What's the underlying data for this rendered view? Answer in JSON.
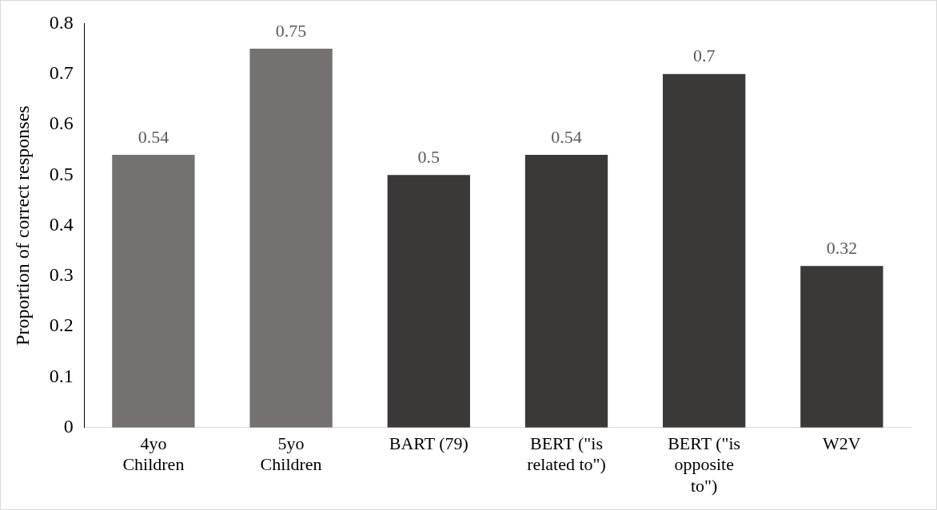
{
  "chart_data": {
    "type": "bar",
    "ylabel": "Proportion of correct responses",
    "categories": [
      "4yo Children",
      "5yo Children",
      "BART (79)",
      "BERT (\"is related to\")",
      "BERT (\"is opposite to\")",
      "W2V"
    ],
    "values": [
      0.54,
      0.75,
      0.5,
      0.54,
      0.7,
      0.32
    ],
    "colors": [
      "#767171",
      "#767171",
      "#3b3838",
      "#3b3838",
      "#3b3838",
      "#3b3838"
    ],
    "ylim": [
      0,
      0.8
    ],
    "yticks": [
      0,
      0.1,
      0.2,
      0.3,
      0.4,
      0.5,
      0.6,
      0.7,
      0.8
    ],
    "grid": false,
    "legend": false,
    "data_labels": true
  }
}
